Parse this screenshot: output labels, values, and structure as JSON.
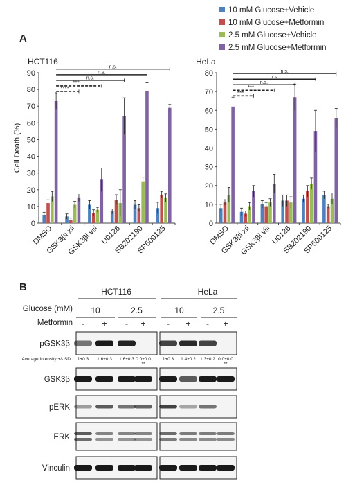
{
  "panel_a": {
    "label": "A",
    "legend": [
      {
        "name": "10 mM Glucose+Vehicle",
        "color": "#4f81bd"
      },
      {
        "name": "10 mM Glucose+Metformin",
        "color": "#c0504d"
      },
      {
        "name": "2.5 mM Glucose+Vehicle",
        "color": "#9bbb59"
      },
      {
        "name": "2.5 mM Glucose+Metformin",
        "color": "#8064a2"
      }
    ]
  },
  "chart_data": [
    {
      "type": "bar",
      "title": "HCT116",
      "xlabel": "",
      "ylabel": "Cell Death (%)",
      "ylim": [
        0,
        90
      ],
      "yticks": [
        0,
        10,
        20,
        30,
        40,
        50,
        60,
        70,
        80,
        90
      ],
      "categories": [
        "DMSO",
        "GSK3βi xii",
        "GSK3βi viii",
        "U0126",
        "SB202190",
        "SP600125"
      ],
      "series": [
        {
          "name": "10 mM Glucose+Vehicle",
          "values": [
            5,
            4,
            11,
            7,
            11,
            9
          ],
          "errors": [
            1.5,
            1.5,
            2.5,
            1.5,
            2.5,
            3.5
          ]
        },
        {
          "name": "10 mM Glucose+Metformin",
          "values": [
            12,
            2,
            6,
            14,
            9,
            17
          ],
          "errors": [
            2,
            1,
            2,
            3,
            2,
            2
          ]
        },
        {
          "name": "2.5 mM Glucose+Vehicle",
          "values": [
            16,
            11,
            8,
            12,
            25,
            15
          ],
          "errors": [
            3,
            2,
            1.5,
            8,
            2.5,
            2.5
          ]
        },
        {
          "name": "2.5 mM Glucose+Metformin",
          "values": [
            73,
            15,
            26,
            64,
            79,
            69
          ],
          "errors": [
            5,
            2,
            7,
            11,
            5,
            2
          ]
        }
      ],
      "significance": [
        {
          "label": "****",
          "to": "GSK3βi xii"
        },
        {
          "label": "***",
          "to": "GSK3βi viii"
        },
        {
          "label": "n.s.",
          "to": "U0126"
        },
        {
          "label": "n.s.",
          "to": "SB202190"
        },
        {
          "label": "n.s.",
          "to": "SP600125"
        }
      ]
    },
    {
      "type": "bar",
      "title": "HeLa",
      "xlabel": "",
      "ylabel": "",
      "ylim": [
        0,
        80
      ],
      "yticks": [
        0,
        10,
        20,
        30,
        40,
        50,
        60,
        70,
        80
      ],
      "categories": [
        "DMSO",
        "GSK3βi xii",
        "GSK3βi viii",
        "U0126",
        "SB202190",
        "SP600125"
      ],
      "series": [
        {
          "name": "10 mM Glucose+Vehicle",
          "values": [
            8,
            6,
            10,
            12,
            13,
            15
          ],
          "errors": [
            2,
            2,
            2,
            3,
            2,
            2
          ]
        },
        {
          "name": "10 mM Glucose+Metformin",
          "values": [
            11,
            5,
            9,
            12,
            17,
            9
          ],
          "errors": [
            1.5,
            1.5,
            2,
            3,
            3,
            1
          ]
        },
        {
          "name": "2.5 mM Glucose+Vehicle",
          "values": [
            15,
            9,
            11,
            11,
            21,
            13
          ],
          "errors": [
            4,
            2,
            2,
            3,
            3,
            3
          ]
        },
        {
          "name": "2.5 mM Glucose+Metformin",
          "values": [
            62,
            17,
            21,
            67,
            49,
            56
          ],
          "errors": [
            5,
            3,
            5,
            7,
            11,
            5
          ]
        }
      ],
      "significance": [
        {
          "label": "***",
          "to": "GSK3βi xii"
        },
        {
          "label": "***",
          "to": "GSK3βi viii"
        },
        {
          "label": "n.s.",
          "to": "U0126"
        },
        {
          "label": "n.s.",
          "to": "SB202190"
        },
        {
          "label": "n.s.",
          "to": "SP600125"
        }
      ]
    }
  ],
  "panel_b": {
    "label": "B",
    "glucose_label": "Glucose (mM)",
    "metformin_label": "Metformin",
    "cell_lines": [
      "HCT116",
      "HeLa"
    ],
    "glucose_levels": [
      "10",
      "2.5"
    ],
    "metformin_signs": [
      "-",
      "+",
      "-",
      "+"
    ],
    "intensity_label": "Average Intensity +/- SD",
    "intensities": [
      [
        "1±0.3",
        "1.6±0.3",
        "1.6±0.3",
        "0.0±0.0"
      ],
      [
        "1±0.3",
        "1.4±0.2",
        "1.3±0.2",
        "0.0±0.0"
      ]
    ],
    "intensity_marks": [
      "**",
      "**"
    ],
    "blots": [
      {
        "label": "pGSK3β",
        "levels": [
          [
            0.45,
            1,
            0.95,
            0
          ],
          [
            0.75,
            0.9,
            0.75,
            0
          ]
        ]
      },
      {
        "label": "GSK3β",
        "levels": [
          [
            1,
            1,
            1,
            1
          ],
          [
            1,
            0.6,
            1,
            1
          ]
        ]
      },
      {
        "label": "pERK",
        "levels": [
          [
            0.2,
            0.6,
            0.45,
            0.55
          ],
          [
            0.75,
            0.15,
            0.45,
            0
          ]
        ]
      },
      {
        "label": "ERK",
        "levels": [
          [
            0.6,
            0.35,
            0.35,
            0.35
          ],
          [
            0.5,
            0.4,
            0.4,
            0.4
          ]
        ]
      },
      {
        "label": "Vinculin",
        "levels": [
          [
            1,
            1,
            1,
            1
          ],
          [
            1,
            1,
            1,
            1
          ]
        ]
      }
    ]
  }
}
